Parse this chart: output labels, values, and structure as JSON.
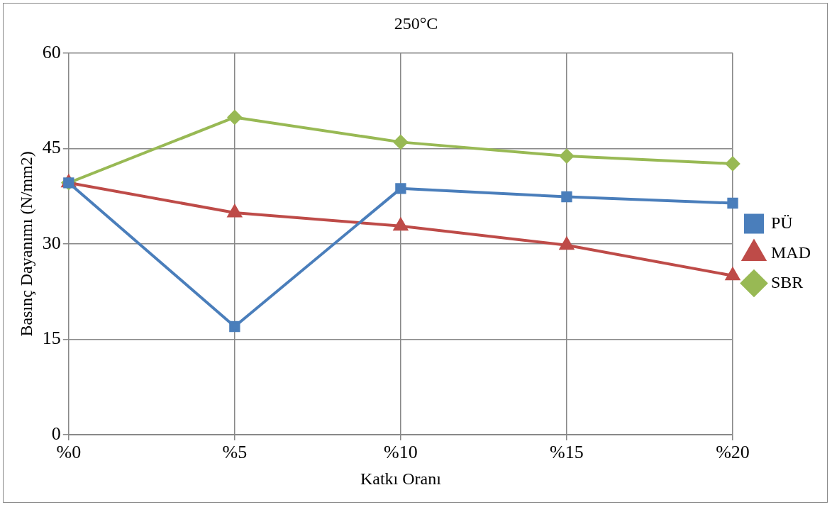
{
  "chart_data": {
    "type": "line",
    "title": "250°C",
    "xlabel": "Katkı Oranı",
    "ylabel": "Basınç Dayanımı (N/mm2)",
    "categories": [
      "%0",
      "%5",
      "%10",
      "%15",
      "%20"
    ],
    "series": [
      {
        "name": "PÜ",
        "color": "#4a7ebb",
        "marker": "square",
        "values": [
          39.6,
          17,
          38.7,
          37.4,
          36.4
        ]
      },
      {
        "name": "MAD",
        "color": "#be4b48",
        "marker": "triangle",
        "values": [
          39.6,
          34.9,
          32.8,
          29.8,
          25
        ]
      },
      {
        "name": "SBR",
        "color": "#98b954",
        "marker": "diamond",
        "values": [
          39.6,
          49.9,
          46,
          43.8,
          42.6
        ]
      }
    ],
    "ylim": [
      0,
      60
    ],
    "yticks": [
      0,
      15,
      30,
      45,
      60
    ],
    "grid": true,
    "legend": "right",
    "line_style": "solid"
  }
}
